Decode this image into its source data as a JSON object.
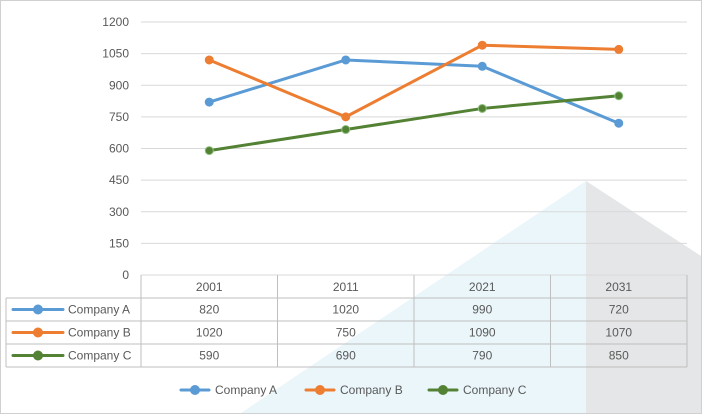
{
  "chart_data": {
    "type": "line",
    "categories": [
      "2001",
      "2011",
      "2021",
      "2031"
    ],
    "series": [
      {
        "name": "Company A",
        "values": [
          820,
          1020,
          990,
          720
        ],
        "color": "#5b9bd5"
      },
      {
        "name": "Company B",
        "values": [
          1020,
          750,
          1090,
          1070
        ],
        "color": "#ed7d31"
      },
      {
        "name": "Company C",
        "values": [
          590,
          690,
          790,
          850
        ],
        "color": "#548235"
      }
    ],
    "y_ticks": [
      "0",
      "150",
      "300",
      "450",
      "600",
      "750",
      "900",
      "1050",
      "1200"
    ],
    "ylim": [
      0,
      1200
    ],
    "grid": true,
    "data_table": true,
    "legend_position": "bottom"
  }
}
